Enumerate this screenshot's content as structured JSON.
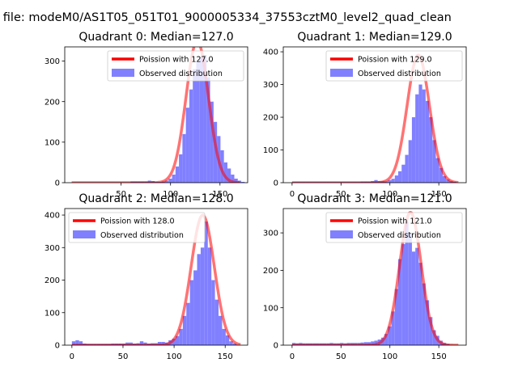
{
  "suptitle": "n file: modeM0/AS1T05_051T01_9000005334_37553cztM0_level2_quad_clean",
  "colors": {
    "observed": "#8080ff",
    "poisson": "#ff0000"
  },
  "chart_data": [
    {
      "type": "bar",
      "title": "Quadrant 0: Median=127.0",
      "xlim": [
        -7,
        178
      ],
      "ylim": [
        0,
        335
      ],
      "xticks": [
        50,
        100,
        150
      ],
      "yticks": [
        0,
        100,
        200,
        300
      ],
      "legend": [
        "Poission with 127.0",
        "Observed distribution"
      ],
      "legend_position": "top-right",
      "bin_width": 3.5,
      "bins": [
        [
          0,
          1
        ],
        [
          3.5,
          1
        ],
        [
          7,
          1
        ],
        [
          10.5,
          1
        ],
        [
          14,
          1
        ],
        [
          17.5,
          1
        ],
        [
          21,
          1
        ],
        [
          24.5,
          1
        ],
        [
          28,
          1
        ],
        [
          31.5,
          1
        ],
        [
          35,
          1
        ],
        [
          38.5,
          1
        ],
        [
          42,
          1
        ],
        [
          45.5,
          1
        ],
        [
          49,
          1
        ],
        [
          52.5,
          1
        ],
        [
          56,
          1
        ],
        [
          59.5,
          3
        ],
        [
          63,
          3
        ],
        [
          66.5,
          3
        ],
        [
          70,
          3
        ],
        [
          73.5,
          3
        ],
        [
          77,
          5
        ],
        [
          80.5,
          4
        ],
        [
          84,
          2
        ],
        [
          87.5,
          2
        ],
        [
          91,
          3
        ],
        [
          94.5,
          5
        ],
        [
          98,
          10
        ],
        [
          101.5,
          20
        ],
        [
          105,
          40
        ],
        [
          108.5,
          70
        ],
        [
          112,
          120
        ],
        [
          115.5,
          185
        ],
        [
          119,
          230
        ],
        [
          122.5,
          280
        ],
        [
          126,
          300
        ],
        [
          129.5,
          310
        ],
        [
          133,
          315
        ],
        [
          136.5,
          260
        ],
        [
          140,
          200
        ],
        [
          143.5,
          150
        ],
        [
          147,
          115
        ],
        [
          150.5,
          80
        ],
        [
          154,
          50
        ],
        [
          157.5,
          35
        ],
        [
          161,
          20
        ],
        [
          164.5,
          10
        ],
        [
          168,
          5
        ],
        [
          171.5,
          2
        ]
      ],
      "poisson_mean": 127.0,
      "poisson_peak": 350,
      "poisson_sigma": 11.3,
      "poisson_range": [
        0,
        170
      ]
    },
    {
      "type": "bar",
      "title": "Quadrant 1: Median=129.0",
      "xlim": [
        -9,
        178
      ],
      "ylim": [
        0,
        415
      ],
      "xticks": [
        0,
        50,
        100,
        150
      ],
      "yticks": [
        0,
        100,
        200,
        300,
        400
      ],
      "legend": [
        "Poission with 129.0",
        "Observed distribution"
      ],
      "legend_position": "top-right",
      "bin_width": 3.5,
      "bins": [
        [
          0,
          2
        ],
        [
          3.5,
          2
        ],
        [
          7,
          2
        ],
        [
          10.5,
          2
        ],
        [
          14,
          2
        ],
        [
          17.5,
          2
        ],
        [
          21,
          2
        ],
        [
          24.5,
          2
        ],
        [
          28,
          2
        ],
        [
          31.5,
          2
        ],
        [
          35,
          2
        ],
        [
          38.5,
          2
        ],
        [
          42,
          2
        ],
        [
          45.5,
          2
        ],
        [
          49,
          2
        ],
        [
          52.5,
          2
        ],
        [
          56,
          2
        ],
        [
          59.5,
          2
        ],
        [
          63,
          2
        ],
        [
          66.5,
          2
        ],
        [
          70,
          3
        ],
        [
          73.5,
          3
        ],
        [
          77,
          3
        ],
        [
          80.5,
          5
        ],
        [
          84,
          8
        ],
        [
          87.5,
          5
        ],
        [
          91,
          5
        ],
        [
          94.5,
          4
        ],
        [
          98,
          8
        ],
        [
          101.5,
          12
        ],
        [
          105,
          22
        ],
        [
          108.5,
          35
        ],
        [
          112,
          55
        ],
        [
          115.5,
          85
        ],
        [
          119,
          130
        ],
        [
          122.5,
          200
        ],
        [
          126,
          270
        ],
        [
          129.5,
          300
        ],
        [
          133,
          285
        ],
        [
          136.5,
          250
        ],
        [
          140,
          200
        ],
        [
          143.5,
          130
        ],
        [
          147,
          75
        ],
        [
          150.5,
          45
        ],
        [
          154,
          20
        ],
        [
          157.5,
          10
        ],
        [
          161,
          5
        ],
        [
          164.5,
          3
        ]
      ],
      "poisson_mean": 129.0,
      "poisson_peak": 390,
      "poisson_sigma": 11.4,
      "poisson_range": [
        0,
        170
      ]
    },
    {
      "type": "bar",
      "title": "Quadrant 2: Median=128.0",
      "xlim": [
        -7,
        172
      ],
      "ylim": [
        0,
        420
      ],
      "xticks": [
        0,
        50,
        100,
        150
      ],
      "yticks": [
        0,
        100,
        200,
        300,
        400
      ],
      "legend": [
        "Poission with 128.0",
        "Observed distribution"
      ],
      "legend_position": "top-left",
      "bin_width": 3.5,
      "bins": [
        [
          0,
          12
        ],
        [
          3.5,
          15
        ],
        [
          7,
          12
        ],
        [
          10.5,
          5
        ],
        [
          14,
          4
        ],
        [
          17.5,
          4
        ],
        [
          21,
          4
        ],
        [
          24.5,
          4
        ],
        [
          28,
          4
        ],
        [
          31.5,
          4
        ],
        [
          35,
          4
        ],
        [
          38.5,
          5
        ],
        [
          42,
          5
        ],
        [
          45.5,
          5
        ],
        [
          49,
          5
        ],
        [
          52.5,
          8
        ],
        [
          56,
          8
        ],
        [
          59.5,
          5
        ],
        [
          63,
          6
        ],
        [
          66.5,
          12
        ],
        [
          70,
          8
        ],
        [
          73.5,
          5
        ],
        [
          77,
          6
        ],
        [
          80.5,
          6
        ],
        [
          84,
          10
        ],
        [
          87.5,
          10
        ],
        [
          91,
          8
        ],
        [
          94.5,
          15
        ],
        [
          98,
          20
        ],
        [
          101.5,
          28
        ],
        [
          105,
          50
        ],
        [
          108.5,
          90
        ],
        [
          112,
          130
        ],
        [
          115.5,
          200
        ],
        [
          119,
          230
        ],
        [
          122.5,
          280
        ],
        [
          126,
          300
        ],
        [
          129.5,
          380
        ],
        [
          133,
          300
        ],
        [
          136.5,
          200
        ],
        [
          140,
          140
        ],
        [
          143.5,
          90
        ],
        [
          147,
          50
        ],
        [
          150.5,
          30
        ],
        [
          154,
          12
        ],
        [
          157.5,
          5
        ]
      ],
      "poisson_mean": 128.0,
      "poisson_peak": 400,
      "poisson_sigma": 11.3,
      "poisson_range": [
        0,
        165
      ]
    },
    {
      "type": "bar",
      "title": "Quadrant 3: Median=121.0",
      "xlim": [
        -9,
        178
      ],
      "ylim": [
        0,
        365
      ],
      "xticks": [
        0,
        50,
        100,
        150
      ],
      "yticks": [
        0,
        100,
        200,
        300
      ],
      "legend": [
        "Poission with 121.0",
        "Observed distribution"
      ],
      "legend_position": "top-right",
      "bin_width": 3.5,
      "bins": [
        [
          0,
          6
        ],
        [
          3.5,
          5
        ],
        [
          7,
          6
        ],
        [
          10.5,
          5
        ],
        [
          14,
          5
        ],
        [
          17.5,
          5
        ],
        [
          21,
          5
        ],
        [
          24.5,
          5
        ],
        [
          28,
          5
        ],
        [
          31.5,
          5
        ],
        [
          35,
          5
        ],
        [
          38.5,
          6
        ],
        [
          42,
          5
        ],
        [
          45.5,
          5
        ],
        [
          49,
          6
        ],
        [
          52.5,
          5
        ],
        [
          56,
          6
        ],
        [
          59.5,
          6
        ],
        [
          63,
          6
        ],
        [
          66.5,
          6
        ],
        [
          70,
          7
        ],
        [
          73.5,
          8
        ],
        [
          77,
          8
        ],
        [
          80.5,
          10
        ],
        [
          84,
          12
        ],
        [
          87.5,
          15
        ],
        [
          91,
          20
        ],
        [
          94.5,
          30
        ],
        [
          98,
          50
        ],
        [
          101.5,
          90
        ],
        [
          105,
          150
        ],
        [
          108.5,
          230
        ],
        [
          112,
          270
        ],
        [
          115.5,
          330
        ],
        [
          119,
          300
        ],
        [
          122.5,
          250
        ],
        [
          126,
          260
        ],
        [
          129.5,
          220
        ],
        [
          133,
          165
        ],
        [
          136.5,
          120
        ],
        [
          140,
          75
        ],
        [
          143.5,
          40
        ],
        [
          147,
          25
        ],
        [
          150.5,
          12
        ],
        [
          154,
          6
        ],
        [
          157.5,
          3
        ]
      ],
      "poisson_mean": 121.0,
      "poisson_peak": 355,
      "poisson_sigma": 11.0,
      "poisson_range": [
        0,
        170
      ]
    }
  ]
}
